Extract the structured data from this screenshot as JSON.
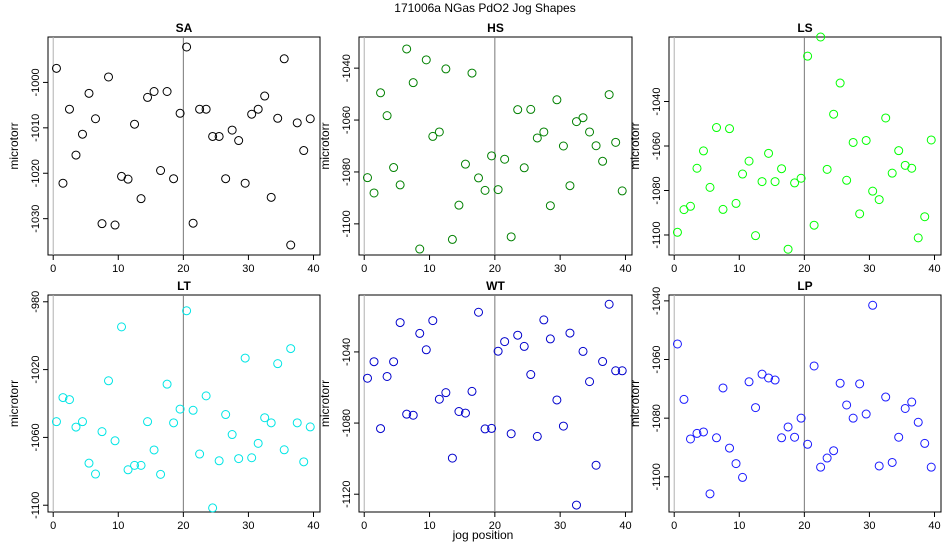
{
  "figure": {
    "title": "171006a    NGas PdO2 Jog Shapes",
    "xlabel": "jog position"
  },
  "chart_data": [
    {
      "type": "scatter",
      "title": "SA",
      "ylabel": "microtorr",
      "color": "#000000",
      "xlim": [
        -0.8,
        41
      ],
      "ylim": [
        -1038,
        -990
      ],
      "xticks": [
        0,
        10,
        20,
        30,
        40
      ],
      "yticks": [
        -1030,
        -1020,
        -1010,
        -1000
      ],
      "vline": 20,
      "x": [
        0.5,
        1.5,
        2.5,
        3.5,
        4.5,
        5.5,
        6.5,
        7.5,
        8.5,
        9.5,
        10.5,
        11.5,
        12.5,
        13.5,
        14.5,
        15.5,
        16.5,
        17.5,
        18.5,
        19.5,
        20.5,
        21.5,
        22.5,
        23.5,
        24.5,
        25.5,
        26.5,
        27.5,
        28.5,
        29.5,
        30.5,
        31.5,
        32.5,
        33.5,
        34.5,
        35.5,
        36.5,
        37.5,
        38.5,
        39.5
      ],
      "y": [
        -996.9,
        -1022.2,
        -1005.9,
        -1016.0,
        -1011.4,
        -1002.4,
        -1008.0,
        -1031.1,
        -998.8,
        -1031.4,
        -1020.7,
        -1021.3,
        -1009.2,
        -1025.6,
        -1003.3,
        -1002.0,
        -1019.4,
        -1002.0,
        -1021.2,
        -1006.8,
        -992.2,
        -1031.0,
        -1005.9,
        -1005.9,
        -1011.9,
        -1011.9,
        -1021.2,
        -1010.5,
        -1012.8,
        -1022.2,
        -1007.0,
        -1005.9,
        -1003.0,
        -1025.3,
        -1007.9,
        -994.8,
        -1035.8,
        -1008.9,
        -1015.0,
        -1008.0
      ]
    },
    {
      "type": "scatter",
      "title": "HS",
      "ylabel": "microtorr",
      "color": "#008000",
      "xlim": [
        -0.8,
        41
      ],
      "ylim": [
        -1112,
        -1028
      ],
      "xticks": [
        0,
        10,
        20,
        30,
        40
      ],
      "yticks": [
        -1100,
        -1080,
        -1060,
        -1040
      ],
      "vline": 20,
      "x": [
        0.5,
        1.5,
        2.5,
        3.5,
        4.5,
        5.5,
        6.5,
        7.5,
        8.5,
        9.5,
        10.5,
        11.5,
        12.5,
        13.5,
        14.5,
        15.5,
        16.5,
        17.5,
        18.5,
        19.5,
        20.5,
        21.5,
        22.5,
        23.5,
        24.5,
        25.5,
        26.5,
        27.5,
        28.5,
        29.5,
        30.5,
        31.5,
        32.5,
        33.5,
        34.5,
        35.5,
        36.5,
        37.5,
        38.5,
        39.5
      ],
      "y": [
        -1082.2,
        -1088.1,
        -1049.5,
        -1058.3,
        -1078.3,
        -1085.0,
        -1032.6,
        -1045.6,
        -1109.7,
        -1036.8,
        -1066.3,
        -1064.6,
        -1040.3,
        -1106.0,
        -1092.8,
        -1077.0,
        -1041.9,
        -1082.3,
        -1087.1,
        -1073.8,
        -1086.8,
        -1075.1,
        -1105.0,
        -1056.0,
        -1078.4,
        -1055.9,
        -1066.9,
        -1064.6,
        -1093.0,
        -1052.2,
        -1070.0,
        -1085.3,
        -1060.6,
        -1059.1,
        -1064.6,
        -1069.9,
        -1075.9,
        -1050.2,
        -1068.6,
        -1087.3
      ]
    },
    {
      "type": "scatter",
      "title": "LS",
      "ylabel": "microtorr",
      "color": "#00ff00",
      "xlim": [
        -0.8,
        41
      ],
      "ylim": [
        -1109,
        -1011
      ],
      "xticks": [
        0,
        10,
        20,
        30,
        40
      ],
      "yticks": [
        -1100,
        -1080,
        -1060,
        -1040
      ],
      "vline": 20,
      "x": [
        0.5,
        1.5,
        2.5,
        3.5,
        4.5,
        5.5,
        6.5,
        7.5,
        8.5,
        9.5,
        10.5,
        11.5,
        12.5,
        13.5,
        14.5,
        15.5,
        16.5,
        17.5,
        18.5,
        19.5,
        20.5,
        21.5,
        22.5,
        23.5,
        24.5,
        25.5,
        26.5,
        27.5,
        28.5,
        29.5,
        30.5,
        31.5,
        32.5,
        33.5,
        34.5,
        35.5,
        36.5,
        37.5,
        38.5,
        39.5
      ],
      "y": [
        -1098.8,
        -1088.6,
        -1087.1,
        -1070.0,
        -1062.2,
        -1078.6,
        -1051.7,
        -1088.5,
        -1052.2,
        -1085.8,
        -1072.6,
        -1066.8,
        -1100.3,
        -1076.0,
        -1063.3,
        -1076.0,
        -1070.2,
        -1106.4,
        -1076.6,
        -1074.5,
        -1019.6,
        -1095.6,
        -1011.0,
        -1070.5,
        -1045.7,
        -1031.7,
        -1075.4,
        -1058.4,
        -1090.5,
        -1057.5,
        -1080.3,
        -1084.1,
        -1047.4,
        -1072.2,
        -1062.1,
        -1068.7,
        -1070.0,
        -1101.3,
        -1091.8,
        -1057.3
      ]
    },
    {
      "type": "scatter",
      "title": "LT",
      "ylabel": "microtorr",
      "color": "#00e5e5",
      "xlim": [
        -0.8,
        41
      ],
      "ylim": [
        -1104,
        -976
      ],
      "xticks": [
        0,
        10,
        20,
        30,
        40
      ],
      "yticks": [
        -1100,
        -1060,
        -1020,
        -980
      ],
      "vline": 20,
      "x": [
        0.5,
        1.5,
        2.5,
        3.5,
        4.5,
        5.5,
        6.5,
        7.5,
        8.5,
        9.5,
        10.5,
        11.5,
        12.5,
        13.5,
        14.5,
        15.5,
        16.5,
        17.5,
        18.5,
        19.5,
        20.5,
        21.5,
        22.5,
        23.5,
        24.5,
        25.5,
        26.5,
        27.5,
        28.5,
        29.5,
        30.5,
        31.5,
        32.5,
        33.5,
        34.5,
        35.5,
        36.5,
        37.5,
        38.5,
        39.5
      ],
      "y": [
        -1050.7,
        -1036.5,
        -1037.7,
        -1053.9,
        -1050.7,
        -1075.2,
        -1081.6,
        -1056.6,
        -1026.6,
        -1062.0,
        -994.8,
        -1079.1,
        -1076.5,
        -1076.5,
        -1050.7,
        -1067.4,
        -1081.8,
        -1028.6,
        -1051.4,
        -1043.3,
        -985.3,
        -1044.0,
        -1069.8,
        -1035.5,
        -1101.6,
        -1073.8,
        -1046.5,
        -1058.3,
        -1072.5,
        -1013.2,
        -1072.0,
        -1063.5,
        -1048.4,
        -1051.4,
        -1016.5,
        -1067.3,
        -1007.6,
        -1051.4,
        -1074.4,
        -1053.8
      ]
    },
    {
      "type": "scatter",
      "title": "WT",
      "ylabel": "microtorr",
      "color": "#0000cc",
      "xlim": [
        -0.8,
        41
      ],
      "ylim": [
        -1130,
        -1008
      ],
      "xticks": [
        0,
        10,
        20,
        30,
        40
      ],
      "yticks": [
        -1120,
        -1080,
        -1040
      ],
      "vline": 20,
      "x": [
        0.5,
        1.5,
        2.5,
        3.5,
        4.5,
        5.5,
        6.5,
        7.5,
        8.5,
        9.5,
        10.5,
        11.5,
        12.5,
        13.5,
        14.5,
        15.5,
        16.5,
        17.5,
        18.5,
        19.5,
        20.5,
        21.5,
        22.5,
        23.5,
        24.5,
        25.5,
        26.5,
        27.5,
        28.5,
        29.5,
        30.5,
        31.5,
        32.5,
        33.5,
        34.5,
        35.5,
        36.5,
        37.5,
        38.5,
        39.5
      ],
      "y": [
        -1054.8,
        -1045.5,
        -1083.1,
        -1053.8,
        -1045.5,
        -1023.5,
        -1075.0,
        -1075.6,
        -1029.6,
        -1038.8,
        -1022.4,
        -1066.6,
        -1062.9,
        -1099.7,
        -1073.5,
        -1074.4,
        -1062.2,
        -1017.7,
        -1083.3,
        -1083.0,
        -1039.6,
        -1034.2,
        -1086.0,
        -1030.6,
        -1036.9,
        -1052.7,
        -1087.5,
        -1022.0,
        -1032.7,
        -1067.0,
        -1081.7,
        -1029.4,
        -1126.1,
        -1039.7,
        -1056.7,
        -1103.7,
        -1045.4,
        -1013.2,
        -1050.6,
        -1050.6
      ]
    },
    {
      "type": "scatter",
      "title": "LP",
      "ylabel": "microtorr",
      "color": "#1a1aff",
      "xlim": [
        -0.8,
        41
      ],
      "ylim": [
        -1112,
        -1038
      ],
      "xticks": [
        0,
        10,
        20,
        30,
        40
      ],
      "yticks": [
        -1100,
        -1080,
        -1060,
        -1040
      ],
      "vline": 20,
      "x": [
        0.5,
        1.5,
        2.5,
        3.5,
        4.5,
        5.5,
        6.5,
        7.5,
        8.5,
        9.5,
        10.5,
        11.5,
        12.5,
        13.5,
        14.5,
        15.5,
        16.5,
        17.5,
        18.5,
        19.5,
        20.5,
        21.5,
        22.5,
        23.5,
        24.5,
        25.5,
        26.5,
        27.5,
        28.5,
        29.5,
        30.5,
        31.5,
        32.5,
        33.5,
        34.5,
        35.5,
        36.5,
        37.5,
        38.5,
        39.5
      ],
      "y": [
        -1054.7,
        -1073.6,
        -1087.1,
        -1085.2,
        -1084.7,
        -1105.8,
        -1086.7,
        -1069.7,
        -1090.2,
        -1095.5,
        -1100.2,
        -1067.6,
        -1076.4,
        -1065.0,
        -1066.3,
        -1067.0,
        -1086.7,
        -1083.0,
        -1086.5,
        -1080.0,
        -1088.9,
        -1062.2,
        -1096.7,
        -1093.6,
        -1091.1,
        -1068.1,
        -1075.5,
        -1080.0,
        -1068.3,
        -1078.6,
        -1041.5,
        -1096.3,
        -1072.8,
        -1095.1,
        -1086.5,
        -1076.7,
        -1074.5,
        -1081.4,
        -1088.6,
        -1096.7
      ]
    }
  ]
}
